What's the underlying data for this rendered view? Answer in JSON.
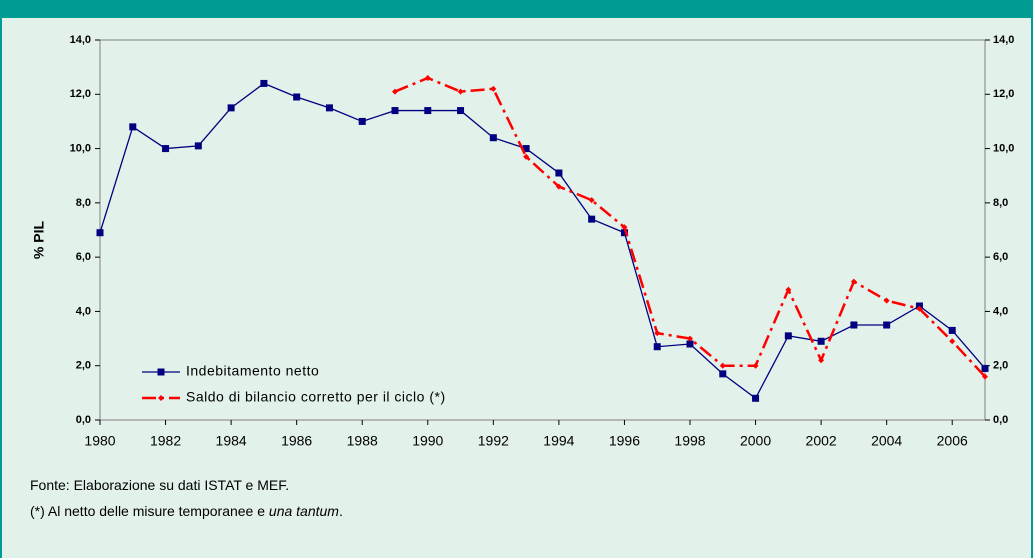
{
  "chart_data": {
    "type": "line",
    "y_label": "% PIL",
    "x": [
      1980,
      1981,
      1982,
      1983,
      1984,
      1985,
      1986,
      1987,
      1988,
      1989,
      1990,
      1991,
      1992,
      1993,
      1994,
      1995,
      1996,
      1997,
      1998,
      1999,
      2000,
      2001,
      2002,
      2003,
      2004,
      2005,
      2006,
      2007
    ],
    "series": [
      {
        "name": "Indebitamento netto",
        "color": "#000080",
        "marker": "square",
        "dash": "solid",
        "values": [
          6.9,
          10.8,
          10.0,
          10.1,
          11.5,
          12.4,
          11.9,
          11.5,
          11.0,
          11.4,
          11.4,
          11.4,
          10.4,
          10.0,
          9.1,
          7.4,
          6.9,
          2.7,
          2.8,
          1.7,
          0.8,
          3.1,
          2.9,
          3.5,
          3.5,
          4.2,
          3.3,
          1.9
        ]
      },
      {
        "name": "Saldo di bilancio corretto per il ciclo (*)",
        "color": "#ff0000",
        "marker": "diamond",
        "dash": "dashdot",
        "values": [
          null,
          null,
          null,
          null,
          null,
          null,
          null,
          null,
          null,
          12.1,
          12.6,
          12.1,
          12.2,
          9.7,
          8.6,
          8.1,
          7.1,
          3.2,
          3.0,
          2.0,
          2.0,
          4.8,
          2.2,
          5.1,
          4.4,
          4.1,
          2.9,
          1.6
        ]
      }
    ],
    "xlim": [
      1980,
      2007
    ],
    "xticks": [
      1980,
      1982,
      1984,
      1986,
      1988,
      1990,
      1992,
      1994,
      1996,
      1998,
      2000,
      2002,
      2004,
      2006
    ],
    "ylim": [
      0,
      14
    ],
    "yticks": [
      {
        "value": 0,
        "label": "0,0"
      },
      {
        "value": 2,
        "label": "2,0"
      },
      {
        "value": 4,
        "label": "4,0"
      },
      {
        "value": 6,
        "label": "6,0"
      },
      {
        "value": 8,
        "label": "8,0"
      },
      {
        "value": 10,
        "label": "10,0"
      },
      {
        "value": 12,
        "label": "12,0"
      },
      {
        "value": 14,
        "label": "14,0"
      }
    ],
    "y2lim": [
      0,
      14
    ],
    "y2ticks": [
      {
        "value": 0,
        "label": "0,0"
      },
      {
        "value": 2,
        "label": "2,0"
      },
      {
        "value": 4,
        "label": "4,0"
      },
      {
        "value": 6,
        "label": "6,0"
      },
      {
        "value": 8,
        "label": "8,0"
      },
      {
        "value": 10,
        "label": "10,0"
      },
      {
        "value": 12,
        "label": "12,0"
      },
      {
        "value": 14,
        "label": "14,0"
      }
    ],
    "legend": "lower-left"
  },
  "notes": {
    "source": "Fonte: Elaborazione su dati ISTAT e MEF.",
    "footnote_start": "(*) Al netto delle misure temporanee e ",
    "footnote_italic": "una tantum",
    "footnote_end": "."
  }
}
